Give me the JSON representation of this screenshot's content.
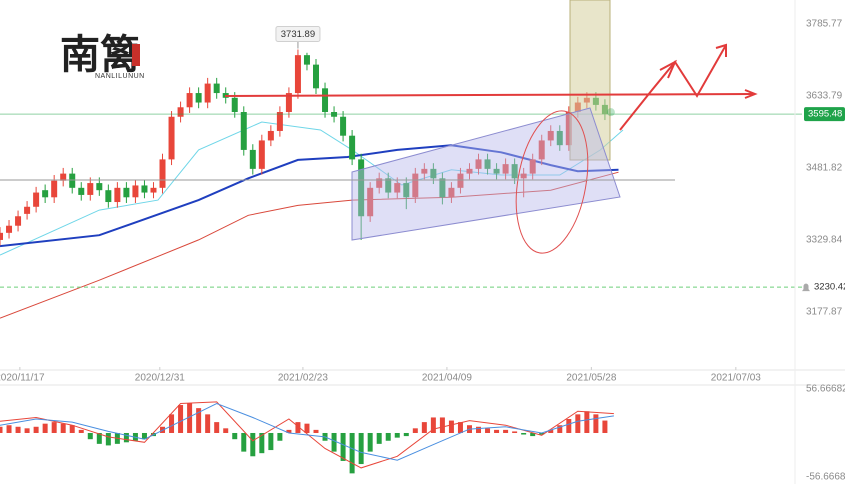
{
  "watermark": {
    "text": "南篱",
    "subtitle": "NANLILUNUN"
  },
  "chart_data": [
    {
      "type": "candlestick",
      "x": [
        0,
        2,
        4,
        6,
        8,
        10,
        12,
        14,
        16,
        18,
        20,
        22,
        24,
        26,
        28,
        30,
        32,
        34,
        36,
        38,
        40,
        42,
        44,
        46,
        48,
        50,
        52,
        54,
        56,
        58,
        60,
        62,
        64,
        66,
        68,
        70,
        72,
        74,
        76,
        78,
        80,
        82,
        84,
        86,
        88,
        90,
        92,
        94,
        96,
        98,
        100,
        102,
        104,
        106,
        108,
        110,
        112,
        114,
        116,
        118,
        120,
        122,
        124,
        126,
        128,
        130,
        132,
        134
      ],
      "open": [
        3330,
        3345,
        3360,
        3385,
        3400,
        3435,
        3420,
        3455,
        3470,
        3440,
        3425,
        3450,
        3435,
        3410,
        3440,
        3420,
        3445,
        3430,
        3440,
        3500,
        3590,
        3610,
        3640,
        3620,
        3660,
        3640,
        3630,
        3600,
        3520,
        3480,
        3540,
        3560,
        3600,
        3640,
        3720,
        3700,
        3650,
        3600,
        3590,
        3550,
        3500,
        3380,
        3440,
        3460,
        3430,
        3450,
        3420,
        3470,
        3480,
        3460,
        3420,
        3440,
        3470,
        3480,
        3500,
        3480,
        3470,
        3490,
        3460,
        3470,
        3500,
        3540,
        3560,
        3530,
        3600,
        3620,
        3630,
        3615
      ],
      "high": [
        3357,
        3372,
        3392,
        3412,
        3442,
        3447,
        3467,
        3482,
        3482,
        3452,
        3462,
        3462,
        3447,
        3452,
        3452,
        3457,
        3457,
        3452,
        3512,
        3602,
        3622,
        3652,
        3652,
        3672,
        3672,
        3652,
        3642,
        3612,
        3532,
        3552,
        3572,
        3612,
        3652,
        3731.89,
        3725,
        3712,
        3662,
        3612,
        3602,
        3562,
        3512,
        3452,
        3472,
        3472,
        3462,
        3462,
        3482,
        3492,
        3492,
        3472,
        3452,
        3482,
        3492,
        3512,
        3512,
        3492,
        3502,
        3502,
        3482,
        3512,
        3552,
        3572,
        3572,
        3612,
        3632,
        3642,
        3642,
        3627
      ],
      "low": [
        3318,
        3333,
        3348,
        3373,
        3388,
        3408,
        3408,
        3443,
        3428,
        3413,
        3413,
        3423,
        3398,
        3398,
        3408,
        3408,
        3418,
        3418,
        3428,
        3488,
        3578,
        3598,
        3608,
        3608,
        3628,
        3618,
        3588,
        3508,
        3468,
        3468,
        3528,
        3548,
        3588,
        3628,
        3688,
        3638,
        3588,
        3578,
        3538,
        3488,
        3330,
        3368,
        3428,
        3418,
        3418,
        3395,
        3408,
        3458,
        3448,
        3405,
        3408,
        3428,
        3458,
        3468,
        3468,
        3458,
        3458,
        3448,
        3420,
        3458,
        3488,
        3528,
        3518,
        3518,
        3588,
        3608,
        3603,
        3583
      ],
      "close": [
        3345,
        3360,
        3380,
        3400,
        3430,
        3420,
        3455,
        3470,
        3440,
        3425,
        3450,
        3435,
        3410,
        3440,
        3420,
        3445,
        3430,
        3440,
        3500,
        3590,
        3610,
        3640,
        3620,
        3660,
        3640,
        3630,
        3600,
        3520,
        3480,
        3540,
        3560,
        3600,
        3640,
        3720,
        3700,
        3650,
        3600,
        3590,
        3550,
        3500,
        3380,
        3440,
        3460,
        3430,
        3450,
        3420,
        3470,
        3480,
        3460,
        3420,
        3440,
        3470,
        3480,
        3500,
        3480,
        3470,
        3490,
        3460,
        3470,
        3500,
        3540,
        3560,
        3530,
        3600,
        3620,
        3630,
        3615,
        3595.48
      ],
      "up_color": "#e8463a",
      "down_color": "#26a040",
      "series": [
        {
          "color": "#6fd6e8",
          "x": [
            0,
            22,
            35,
            44,
            58,
            71,
            78,
            89,
            100,
            111,
            124,
            133,
            138
          ],
          "values": [
            3298,
            3393,
            3414,
            3520,
            3579,
            3562,
            3520,
            3446,
            3478,
            3467,
            3467,
            3520,
            3562
          ]
        },
        {
          "color": "#1f3fbf",
          "x": [
            0,
            22,
            44,
            55,
            66,
            77,
            88,
            100,
            111,
            122,
            128,
            137
          ],
          "values": [
            3317,
            3340,
            3414,
            3460,
            3499,
            3505,
            3520,
            3530,
            3515,
            3488,
            3475,
            3478
          ]
        },
        {
          "color": "#d9483b",
          "x": [
            0,
            22,
            44,
            55,
            66,
            78,
            100,
            122,
            137
          ],
          "values": [
            3165,
            3245,
            3330,
            3382,
            3403,
            3414,
            3420,
            3435,
            3473
          ]
        }
      ],
      "xlim": [
        0,
        175
      ],
      "xticks": [
        {
          "value": 4.4,
          "label": "2020/11/17"
        },
        {
          "value": 35.4,
          "label": "2020/12/31"
        },
        {
          "value": 67.1,
          "label": "2021/02/23"
        },
        {
          "value": 99,
          "label": "2021/04/09"
        },
        {
          "value": 131,
          "label": "2021/05/28"
        },
        {
          "value": 163,
          "label": "2021/07/03"
        }
      ],
      "ylim": [
        3055.5,
        3836.4
      ],
      "yticks": [
        3785.77,
        3633.79,
        3481.82,
        3329.84,
        3177.87
      ],
      "peak": {
        "x": 66,
        "value": 3731.89
      },
      "last": {
        "value": 3595.48,
        "color": "#1fa34a"
      },
      "alert": {
        "value": 3230.42
      }
    },
    {
      "type": "macd",
      "x": [
        0,
        2,
        4,
        6,
        8,
        10,
        12,
        14,
        16,
        18,
        20,
        22,
        24,
        26,
        28,
        30,
        32,
        34,
        36,
        38,
        40,
        42,
        44,
        46,
        48,
        50,
        52,
        54,
        56,
        58,
        60,
        62,
        64,
        66,
        68,
        70,
        72,
        74,
        76,
        78,
        80,
        82,
        84,
        86,
        88,
        90,
        92,
        94,
        96,
        98,
        100,
        102,
        104,
        106,
        108,
        110,
        112,
        114,
        116,
        118,
        120,
        122,
        124,
        126,
        128,
        130,
        132,
        134
      ],
      "values": [
        8,
        10,
        8,
        6,
        8,
        12,
        14,
        12,
        10,
        4,
        -8,
        -14,
        -16,
        -14,
        -12,
        -10,
        -8,
        -4,
        8,
        24,
        36,
        38,
        32,
        24,
        14,
        6,
        -8,
        -24,
        -30,
        -26,
        -22,
        -10,
        4,
        14,
        12,
        4,
        -10,
        -24,
        -36,
        -52,
        -40,
        -24,
        -14,
        -10,
        -6,
        -4,
        6,
        14,
        20,
        20,
        16,
        14,
        10,
        8,
        6,
        4,
        4,
        2,
        -2,
        -4,
        -2,
        4,
        10,
        18,
        24,
        28,
        24,
        16
      ],
      "up_color": "#e8463a",
      "down_color": "#26a040",
      "series": [
        {
          "color": "#e8463a",
          "x": [
            0,
            8,
            16,
            24,
            32,
            40,
            48,
            56,
            64,
            72,
            80,
            88,
            96,
            104,
            112,
            120,
            128,
            136
          ],
          "values": [
            15,
            20,
            10,
            -5,
            -12,
            38,
            40,
            -10,
            18,
            -20,
            -45,
            -30,
            5,
            16,
            10,
            -3,
            28,
            25
          ]
        },
        {
          "color": "#4a8fe0",
          "x": [
            0,
            8,
            16,
            24,
            32,
            40,
            48,
            56,
            64,
            72,
            80,
            88,
            96,
            104,
            112,
            120,
            128,
            136
          ],
          "values": [
            10,
            18,
            14,
            2,
            -8,
            15,
            38,
            20,
            0,
            -5,
            -25,
            -35,
            -15,
            5,
            8,
            0,
            15,
            22
          ]
        }
      ],
      "xlim": [
        0,
        175
      ],
      "ylim": [
        -65.7,
        61.8
      ],
      "yticks": [
        56.66682,
        -56.66682
      ]
    }
  ]
}
